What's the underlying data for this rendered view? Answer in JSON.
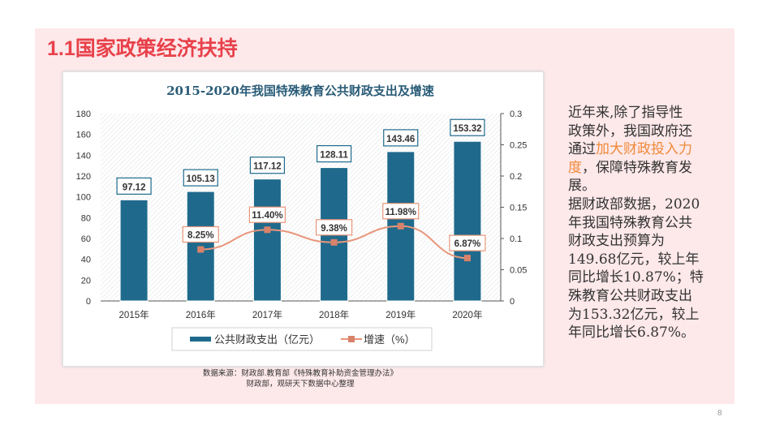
{
  "slide": {
    "title": "1.1国家政策经济扶持",
    "page_number": "8",
    "source_lines": [
      "数据来源：财政部.教育部《特殊教育补助资金管理办法》",
      "财政部，观研天下数据中心整理"
    ],
    "body_lines": [
      [
        {
          "t": "近年来,除了指导性"
        }
      ],
      [
        {
          "t": "政策外，我国政府还"
        }
      ],
      [
        {
          "t": "通过"
        },
        {
          "t": "加大财政投入力",
          "hl": true
        }
      ],
      [
        {
          "t": "度",
          "hl": true
        },
        {
          "t": "，保障特殊教育发"
        }
      ],
      [
        {
          "t": "展。"
        }
      ],
      [
        {
          "t": "据财政部数据，2020"
        }
      ],
      [
        {
          "t": "年我国特殊教育公共"
        }
      ],
      [
        {
          "t": "财政支出预算为"
        }
      ],
      [
        {
          "t": "149.68亿元，较上年"
        }
      ],
      [
        {
          "t": "同比增长10.87%；特"
        }
      ],
      [
        {
          "t": "殊教育公共财政支出"
        }
      ],
      [
        {
          "t": "为153.32亿元，较上"
        }
      ],
      [
        {
          "t": "年同比增长6.87%。"
        }
      ]
    ],
    "highlight_color": "#f08a38",
    "title_color": "#e8414a"
  },
  "chart_data": {
    "type": "bar+line",
    "title": "2015-2020年我国特殊教育公共财政支出及增速",
    "categories": [
      "2015年",
      "2016年",
      "2017年",
      "2018年",
      "2019年",
      "2020年"
    ],
    "series": [
      {
        "name": "公共财政支出（亿元）",
        "type": "bar",
        "axis": "left",
        "color": "#1f6a8c",
        "values": [
          97.12,
          105.13,
          117.12,
          128.11,
          143.46,
          153.32
        ],
        "labels": [
          "97.12",
          "105.13",
          "117.12",
          "128.11",
          "143.46",
          "153.32"
        ]
      },
      {
        "name": "增速（%）",
        "type": "line",
        "axis": "right",
        "color": "#e8967a",
        "values": [
          null,
          0.0825,
          0.114,
          0.0938,
          0.1198,
          0.0687
        ],
        "labels": [
          null,
          "8.25%",
          "11.40%",
          "9.38%",
          "11.98%",
          "6.87%"
        ]
      }
    ],
    "left_axis": {
      "range": [
        0,
        180
      ],
      "ticks": [
        "0",
        "20",
        "40",
        "60",
        "80",
        "100",
        "120",
        "140",
        "160",
        "180"
      ]
    },
    "right_axis": {
      "range": [
        0,
        0.3
      ],
      "ticks": [
        "0",
        "0.05",
        "0.1",
        "0.15",
        "0.2",
        "0.25",
        "0.3"
      ]
    },
    "grid": false,
    "legend": "bottom"
  }
}
